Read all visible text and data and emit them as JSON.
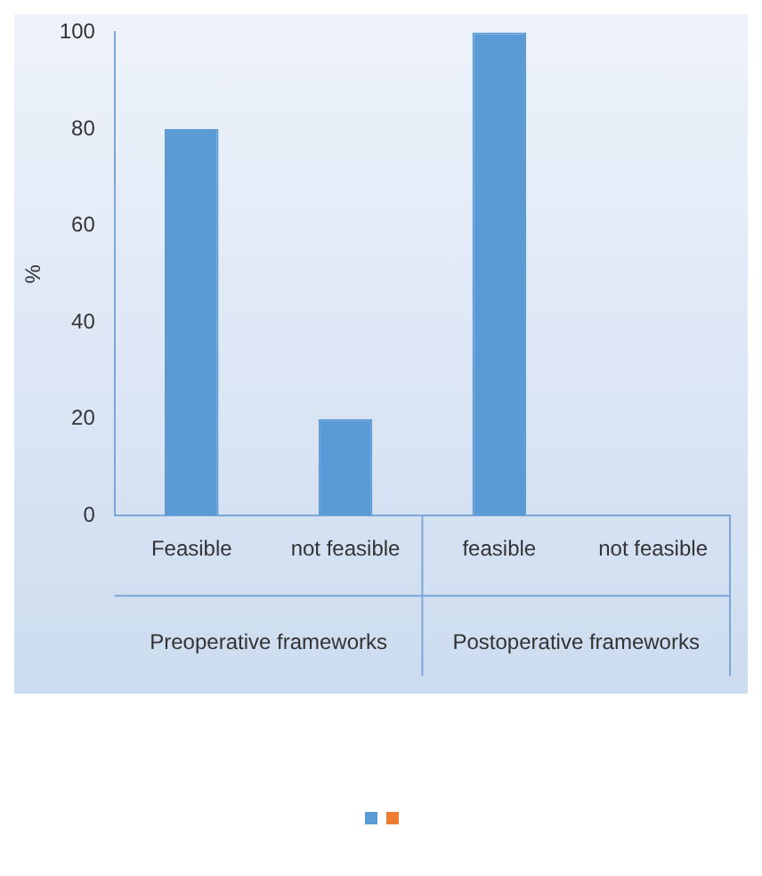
{
  "chart_data": {
    "type": "bar",
    "ylabel": "%",
    "categories": [
      "Feasible",
      "not feasible",
      "feasible",
      "not feasible"
    ],
    "series": [
      {
        "color": "#5b9bd5",
        "values": [
          80,
          20,
          100,
          0
        ]
      }
    ],
    "ylim": [
      0,
      100
    ],
    "yticks": [
      0,
      20,
      40,
      60,
      80,
      100
    ],
    "grid": false,
    "annotations": [
      "Preoperative frameworks",
      "Postoperative frameworks"
    ]
  }
}
